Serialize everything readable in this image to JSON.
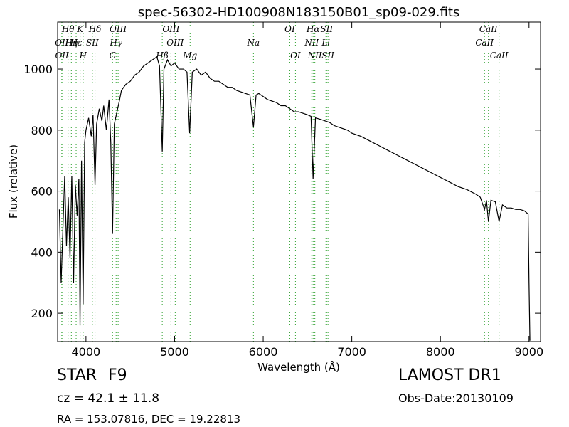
{
  "chart_data": {
    "type": "line",
    "title": "spec-56302-HD100908N183150B01_sp09-029.fits",
    "x_label": "Wavelength (Å)",
    "y_label": "Flux (relative)",
    "xlim": [
      3680,
      9130
    ],
    "ylim": [
      107,
      1154
    ],
    "xticks": [
      4000,
      5000,
      6000,
      7000,
      8000,
      9000
    ],
    "yticks": [
      200,
      400,
      600,
      800,
      1000
    ],
    "color": "#000000",
    "line_color": "#2ca02c",
    "x": [
      3700,
      3720,
      3740,
      3760,
      3780,
      3800,
      3820,
      3840,
      3860,
      3880,
      3900,
      3920,
      3933,
      3950,
      3968,
      3985,
      4000,
      4030,
      4060,
      4080,
      4102,
      4120,
      4150,
      4180,
      4200,
      4230,
      4260,
      4280,
      4300,
      4320,
      4350,
      4380,
      4400,
      4450,
      4500,
      4550,
      4600,
      4650,
      4700,
      4750,
      4800,
      4830,
      4861,
      4880,
      4920,
      4960,
      5000,
      5050,
      5100,
      5140,
      5170,
      5200,
      5250,
      5300,
      5350,
      5400,
      5450,
      5500,
      5550,
      5600,
      5650,
      5700,
      5750,
      5800,
      5850,
      5890,
      5920,
      5950,
      6000,
      6050,
      6100,
      6150,
      6200,
      6250,
      6300,
      6350,
      6400,
      6450,
      6500,
      6540,
      6563,
      6590,
      6650,
      6700,
      6750,
      6800,
      6850,
      6900,
      6950,
      7000,
      7100,
      7200,
      7300,
      7400,
      7500,
      7600,
      7700,
      7800,
      7900,
      8000,
      8100,
      8200,
      8300,
      8400,
      8450,
      8498,
      8520,
      8542,
      8570,
      8620,
      8662,
      8700,
      8750,
      8800,
      8850,
      8900,
      8950,
      8990,
      9000,
      9010
    ],
    "values": [
      540,
      300,
      480,
      650,
      420,
      580,
      380,
      650,
      300,
      620,
      520,
      640,
      160,
      700,
      230,
      760,
      800,
      840,
      780,
      850,
      620,
      820,
      870,
      830,
      880,
      800,
      900,
      760,
      460,
      820,
      860,
      900,
      930,
      950,
      960,
      980,
      990,
      1010,
      1020,
      1030,
      1040,
      1010,
      730,
      1000,
      1030,
      1010,
      1020,
      1000,
      1000,
      990,
      790,
      990,
      1000,
      980,
      990,
      970,
      960,
      960,
      950,
      940,
      940,
      930,
      925,
      920,
      915,
      810,
      915,
      920,
      910,
      900,
      895,
      890,
      880,
      880,
      870,
      860,
      860,
      855,
      850,
      845,
      640,
      840,
      835,
      830,
      825,
      815,
      810,
      805,
      800,
      790,
      780,
      765,
      750,
      735,
      720,
      705,
      690,
      675,
      660,
      645,
      630,
      615,
      605,
      590,
      580,
      540,
      570,
      500,
      570,
      565,
      500,
      555,
      545,
      545,
      540,
      540,
      535,
      525,
      300,
      110
    ],
    "line_rows": [
      [
        {
          "label": "Hθ",
          "x": 3798
        },
        {
          "label": "K",
          "x": 3934
        },
        {
          "label": "Hδ",
          "x": 4102
        },
        {
          "label": "OIII",
          "x": 4363
        },
        {
          "label": "OIII",
          "x": 4959
        },
        {
          "label": "OI",
          "x": 6300
        },
        {
          "label": "Hα",
          "x": 6563
        },
        {
          "label": "SII",
          "x": 6716
        },
        {
          "label": "CaII",
          "x": 8542
        }
      ],
      [
        {
          "label": "OII",
          "x": 3727
        },
        {
          "label": "Hη",
          "x": 3835
        },
        {
          "label": "Hε",
          "x": 3889
        },
        {
          "label": "SII",
          "x": 4072
        },
        {
          "label": "Hγ",
          "x": 4340
        },
        {
          "label": "OIII",
          "x": 5007
        },
        {
          "label": "Na",
          "x": 5890
        },
        {
          "label": "NII",
          "x": 6548
        },
        {
          "label": "Li",
          "x": 6708
        },
        {
          "label": "CaII",
          "x": 8498
        }
      ],
      [
        {
          "label": "OII",
          "x": 3729
        },
        {
          "label": "H",
          "x": 3968
        },
        {
          "label": "G",
          "x": 4300
        },
        {
          "label": "Hβ",
          "x": 4861
        },
        {
          "label": "Mg",
          "x": 5175
        },
        {
          "label": "OI",
          "x": 6364
        },
        {
          "label": "NII",
          "x": 6583
        },
        {
          "label": "SII",
          "x": 6731
        },
        {
          "label": "CaII",
          "x": 8662
        }
      ]
    ]
  },
  "footer": {
    "class": "STAR",
    "subclass": "F9",
    "cz": "cz = 42.1  ± 11.8",
    "coords": "RA = 153.07816, DEC = 19.22813",
    "survey": "LAMOST DR1",
    "obs_date": "Obs-Date:20130109"
  }
}
